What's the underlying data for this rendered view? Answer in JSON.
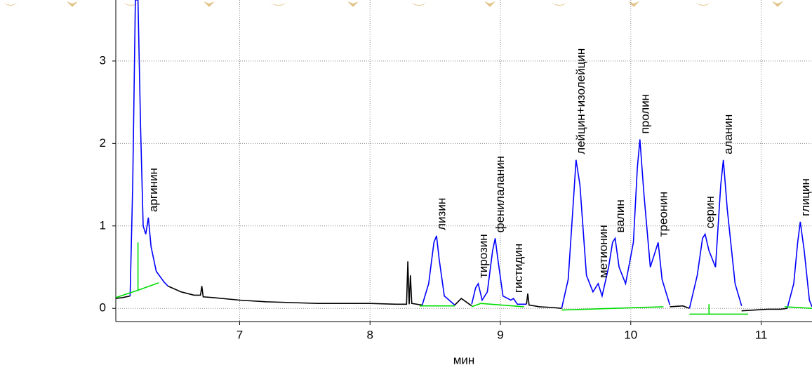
{
  "chart_data": {
    "type": "line",
    "xlabel": "мин",
    "xlim": [
      6.05,
      11.39
    ],
    "ylim": [
      -0.16,
      3.74
    ],
    "xticks": [
      7,
      8,
      9,
      10,
      11
    ],
    "yticks": [
      0,
      1,
      2,
      3
    ],
    "grid": true,
    "series": [
      {
        "color": "#000000",
        "x": [
          6.05,
          6.1,
          6.16,
          6.3,
          6.45,
          6.55,
          6.65,
          6.7,
          6.71,
          6.72,
          6.8,
          7.0,
          7.2,
          7.4,
          7.6,
          7.8,
          8.0,
          8.2,
          8.28,
          8.29,
          8.3,
          8.31,
          8.32,
          8.4,
          8.5,
          8.65,
          8.7,
          8.78,
          9.0,
          9.2,
          9.21,
          9.22,
          9.3,
          9.4,
          9.47,
          9.9,
          10.3,
          10.4,
          10.45,
          10.6,
          10.85,
          10.95,
          11.05,
          11.15,
          11.2
        ],
        "values": [
          0.12,
          0.13,
          0.15,
          null,
          0.27,
          0.2,
          0.16,
          0.16,
          0.27,
          0.14,
          0.13,
          0.1,
          0.08,
          0.07,
          0.06,
          0.06,
          0.06,
          0.05,
          0.05,
          0.57,
          0.05,
          0.4,
          0.06,
          0.04,
          null,
          0.04,
          0.12,
          0.03,
          null,
          0.05,
          0.18,
          0.04,
          0.02,
          0.01,
          0.0,
          null,
          0.02,
          0.03,
          0.0,
          null,
          -0.03,
          -0.02,
          -0.01,
          -0.01,
          0.0
        ]
      },
      {
        "color": "#0000ff",
        "x": [
          6.16,
          6.18,
          6.2,
          6.22,
          6.24,
          6.26,
          6.28,
          6.3,
          6.32,
          6.36,
          6.42,
          6.45,
          6.9,
          8.4,
          8.45,
          8.49,
          8.51,
          8.53,
          8.57,
          8.65,
          8.7,
          8.78,
          8.81,
          8.83,
          8.86,
          8.9,
          8.94,
          8.96,
          8.98,
          9.02,
          9.08,
          9.1,
          9.13,
          9.2,
          9.3,
          9.47,
          9.52,
          9.56,
          9.58,
          9.61,
          9.66,
          9.71,
          9.75,
          9.78,
          9.83,
          9.86,
          9.88,
          9.91,
          9.96,
          10.02,
          10.05,
          10.07,
          10.1,
          10.15,
          10.19,
          10.21,
          10.24,
          10.3,
          10.4,
          10.45,
          10.51,
          10.55,
          10.57,
          10.6,
          10.65,
          10.69,
          10.71,
          10.74,
          10.8,
          10.85,
          11.0,
          11.2,
          11.25,
          11.28,
          11.3,
          11.33,
          11.37,
          11.39
        ],
        "values": [
          0.15,
          1.5,
          3.74,
          3.74,
          2.2,
          1.0,
          0.9,
          1.1,
          0.75,
          0.45,
          0.32,
          0.27,
          null,
          0.04,
          0.3,
          0.8,
          0.88,
          0.6,
          0.15,
          0.04,
          null,
          0.05,
          0.25,
          0.3,
          0.1,
          0.2,
          0.7,
          0.85,
          0.6,
          0.15,
          0.1,
          0.12,
          0.05,
          0.05,
          null,
          0.0,
          0.35,
          1.3,
          1.8,
          1.5,
          0.4,
          0.2,
          0.3,
          0.15,
          0.5,
          0.8,
          0.85,
          0.5,
          0.3,
          0.8,
          1.7,
          2.05,
          1.4,
          0.5,
          0.7,
          0.8,
          0.35,
          0.04,
          null,
          0.0,
          0.4,
          0.85,
          0.9,
          0.7,
          0.5,
          1.5,
          1.8,
          1.2,
          0.3,
          0.03,
          null,
          0.0,
          0.3,
          0.8,
          1.05,
          0.7,
          0.1,
          0.02
        ]
      },
      {
        "color": "#00dd00",
        "x": [
          6.05,
          6.22,
          6.38,
          6.3,
          6.22,
          6.22,
          7.0,
          8.38,
          8.65,
          8.7,
          8.78,
          8.85,
          9.18,
          9.3,
          9.47,
          10.25,
          10.3,
          10.45,
          10.9,
          10.7,
          10.6,
          10.6,
          11.0,
          11.18,
          11.39
        ],
        "values": [
          0.13,
          0.22,
          0.31,
          null,
          0.22,
          0.8,
          null,
          0.03,
          0.03,
          null,
          0.02,
          0.06,
          0.02,
          null,
          -0.02,
          0.02,
          null,
          -0.07,
          -0.07,
          null,
          -0.07,
          0.05,
          null,
          0.02,
          0.0
        ]
      }
    ],
    "annotations": [
      {
        "text": "аргинин",
        "x": 6.3,
        "y": 1.1
      },
      {
        "text": "лизин",
        "x": 8.51,
        "y": 0.88
      },
      {
        "text": "тирозин",
        "x": 8.83,
        "y": 0.3
      },
      {
        "text": "фенилаланин",
        "x": 8.96,
        "y": 0.85
      },
      {
        "text": "гистидин",
        "x": 9.1,
        "y": 0.12
      },
      {
        "text": "лейцин+изолейцин",
        "x": 9.58,
        "y": 1.8
      },
      {
        "text": "метионин",
        "x": 9.75,
        "y": 0.3
      },
      {
        "text": "валин",
        "x": 9.88,
        "y": 0.85
      },
      {
        "text": "пролин",
        "x": 10.07,
        "y": 2.05
      },
      {
        "text": "треонин",
        "x": 10.21,
        "y": 0.8
      },
      {
        "text": "серин",
        "x": 10.57,
        "y": 0.9
      },
      {
        "text": "аланин",
        "x": 10.71,
        "y": 1.8
      },
      {
        "text": "глицин",
        "x": 11.3,
        "y": 1.05
      }
    ]
  }
}
